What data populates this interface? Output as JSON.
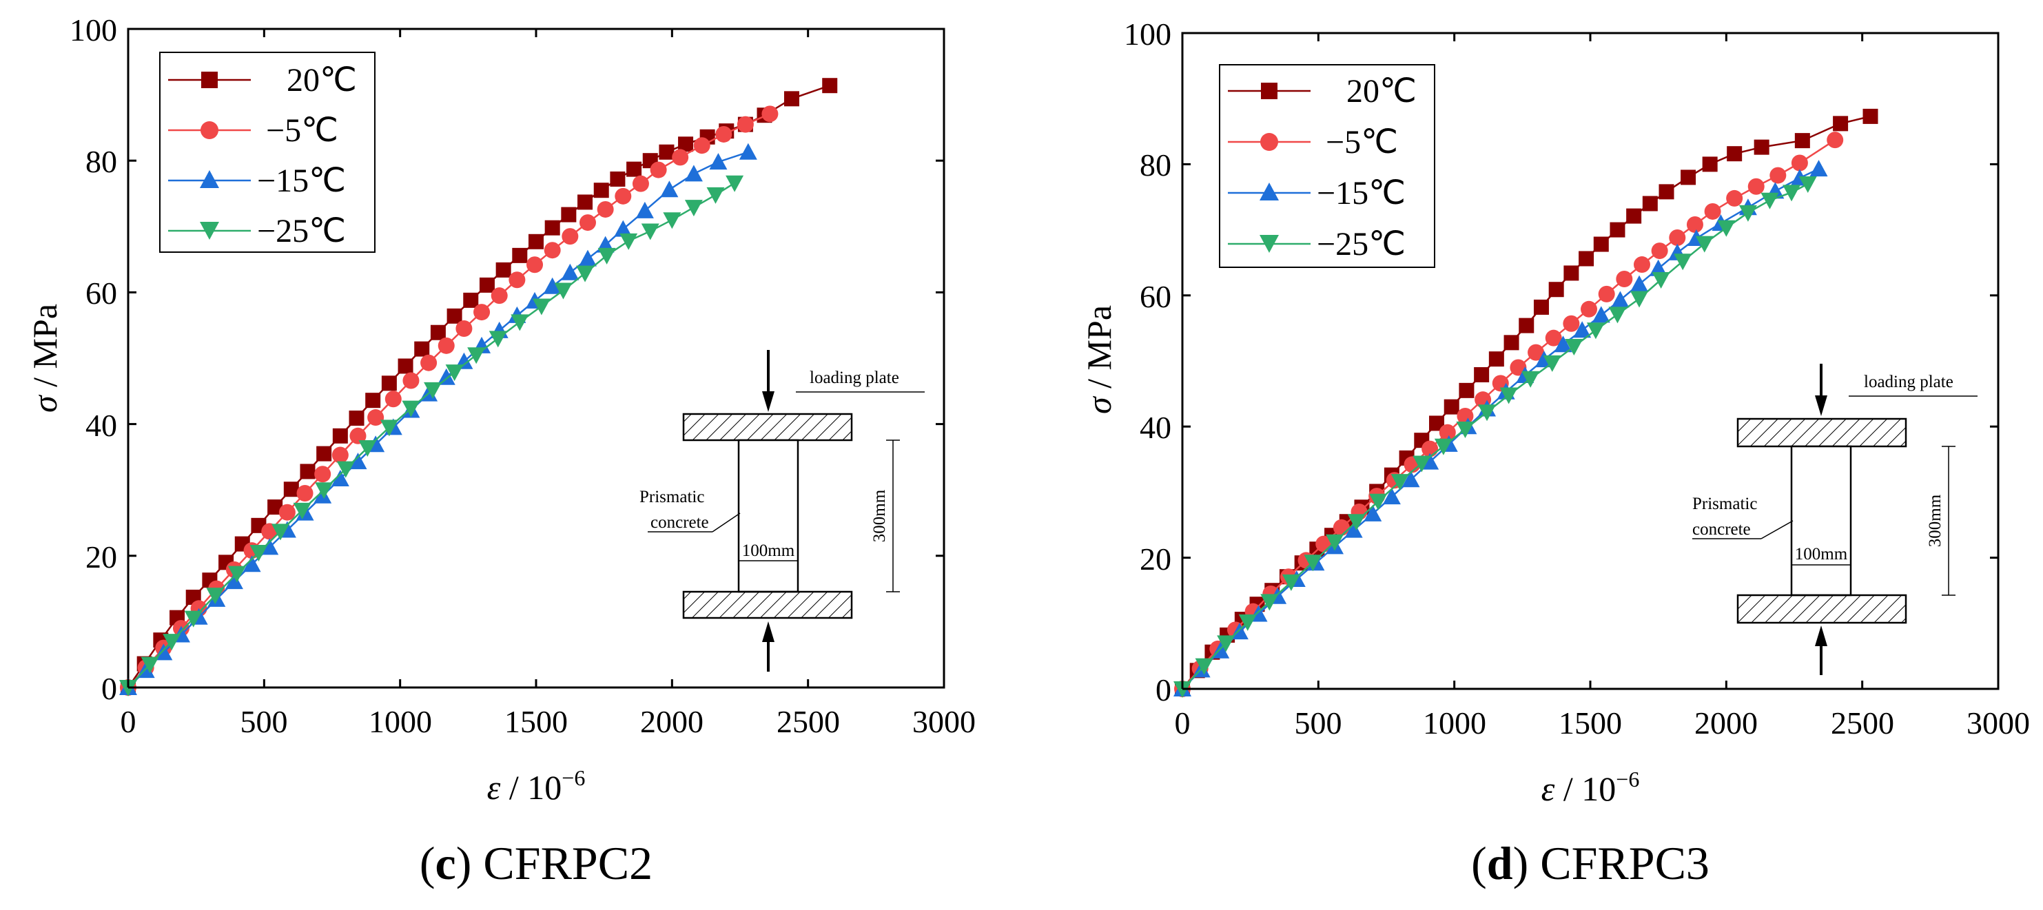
{
  "colors": {
    "s20": "#8B0000",
    "s_5": "#F04848",
    "s_15": "#1E6FD9",
    "s_25": "#2EAD6B"
  },
  "chart_data": [
    {
      "type": "line",
      "panel": "c",
      "caption_letter": "c",
      "caption_open": "(",
      "caption_close": ")",
      "caption_text": "CFRPC2",
      "xlabel_sym": "ε",
      "xlabel_rest": " / 10",
      "xlabel_exp": "−6",
      "ylabel_sym": "σ",
      "ylabel_rest": " / MPa",
      "xlim": [
        0,
        3000
      ],
      "ylim": [
        0,
        100
      ],
      "xticks": [
        "0",
        "500",
        "1000",
        "1500",
        "2000",
        "2500",
        "3000"
      ],
      "yticks": [
        "0",
        "20",
        "40",
        "60",
        "80",
        "100"
      ],
      "legend_position": "top-left",
      "inset": {
        "top_label": "loading plate",
        "left_label_1": "Prismatic",
        "left_label_2": "concrete",
        "width_label": "100mm",
        "height_label": "300mm"
      },
      "series": [
        {
          "name": "20℃",
          "marker": "square",
          "color": "#8B0000",
          "x": [
            0,
            60,
            120,
            180,
            240,
            300,
            360,
            420,
            480,
            540,
            600,
            660,
            720,
            780,
            840,
            900,
            960,
            1020,
            1080,
            1140,
            1200,
            1260,
            1320,
            1380,
            1440,
            1500,
            1560,
            1620,
            1680,
            1740,
            1800,
            1860,
            1920,
            1980,
            2050,
            2130,
            2200,
            2270,
            2340,
            2440,
            2580
          ],
          "y": [
            0,
            3.6,
            7.2,
            10.6,
            13.7,
            16.3,
            19.0,
            21.8,
            24.6,
            27.4,
            30.1,
            32.8,
            35.5,
            38.2,
            40.9,
            43.6,
            46.2,
            48.8,
            51.4,
            53.9,
            56.4,
            58.8,
            61.1,
            63.4,
            65.6,
            67.7,
            69.8,
            71.8,
            73.7,
            75.5,
            77.2,
            78.7,
            80.0,
            81.3,
            82.5,
            83.6,
            84.5,
            85.5,
            86.9,
            89.4,
            91.4
          ]
        },
        {
          "name": "−5℃",
          "marker": "circle",
          "color": "#F04848",
          "x": [
            0,
            65,
            130,
            195,
            260,
            325,
            390,
            455,
            520,
            585,
            650,
            715,
            780,
            845,
            910,
            975,
            1040,
            1105,
            1170,
            1235,
            1300,
            1365,
            1430,
            1495,
            1560,
            1625,
            1690,
            1755,
            1820,
            1885,
            1950,
            2030,
            2110,
            2190,
            2270,
            2360
          ],
          "y": [
            0,
            3.0,
            6.0,
            9.0,
            12.0,
            15.0,
            17.9,
            20.8,
            23.7,
            26.6,
            29.5,
            32.4,
            35.3,
            38.2,
            41.0,
            43.8,
            46.6,
            49.3,
            51.9,
            54.5,
            57.0,
            59.5,
            61.9,
            64.2,
            66.4,
            68.5,
            70.6,
            72.6,
            74.6,
            76.5,
            78.6,
            80.5,
            82.3,
            84.0,
            85.5,
            87.1
          ]
        },
        {
          "name": "−15℃",
          "marker": "triangle-up",
          "color": "#1E6FD9",
          "x": [
            0,
            65,
            130,
            195,
            260,
            325,
            390,
            455,
            520,
            585,
            650,
            715,
            780,
            845,
            910,
            975,
            1040,
            1105,
            1170,
            1235,
            1300,
            1365,
            1430,
            1495,
            1560,
            1625,
            1690,
            1755,
            1820,
            1900,
            1990,
            2080,
            2170,
            2280
          ],
          "y": [
            0,
            2.6,
            5.3,
            8.0,
            10.7,
            13.4,
            16.1,
            18.7,
            21.3,
            23.9,
            26.5,
            29.1,
            31.7,
            34.3,
            36.9,
            39.5,
            42.1,
            44.6,
            47.1,
            49.5,
            51.9,
            54.2,
            56.5,
            58.7,
            60.9,
            63.0,
            65.1,
            67.2,
            69.6,
            72.4,
            75.6,
            78.0,
            79.8,
            81.3
          ]
        },
        {
          "name": "−25℃",
          "marker": "triangle-down",
          "color": "#2EAD6B",
          "x": [
            0,
            80,
            160,
            240,
            320,
            400,
            480,
            560,
            640,
            720,
            800,
            880,
            960,
            1040,
            1120,
            1200,
            1280,
            1360,
            1440,
            1520,
            1600,
            1680,
            1760,
            1840,
            1920,
            2000,
            2080,
            2160,
            2230
          ],
          "y": [
            0,
            3.5,
            7.0,
            10.5,
            14.0,
            17.3,
            20.5,
            23.7,
            26.9,
            30.0,
            33.2,
            36.4,
            39.5,
            42.4,
            45.2,
            47.9,
            50.5,
            53.0,
            55.5,
            57.9,
            60.3,
            62.9,
            65.6,
            67.8,
            69.3,
            71.0,
            72.9,
            74.8,
            76.6
          ]
        }
      ]
    },
    {
      "type": "line",
      "panel": "d",
      "caption_letter": "d",
      "caption_open": "(",
      "caption_close": ")",
      "caption_text": "CFRPC3",
      "xlabel_sym": "ε",
      "xlabel_rest": " / 10",
      "xlabel_exp": "−6",
      "ylabel_sym": "σ",
      "ylabel_rest": " / MPa",
      "xlim": [
        0,
        3000
      ],
      "ylim": [
        0,
        100
      ],
      "xticks": [
        "0",
        "500",
        "1000",
        "1500",
        "2000",
        "2500",
        "3000"
      ],
      "yticks": [
        "0",
        "20",
        "40",
        "60",
        "80",
        "100"
      ],
      "legend_position": "top-left",
      "inset": {
        "top_label": "loading plate",
        "left_label_1": "Prismatic",
        "left_label_2": "concrete",
        "width_label": "100mm",
        "height_label": "300mm"
      },
      "series": [
        {
          "name": "20℃",
          "marker": "square",
          "color": "#8B0000",
          "x": [
            0,
            55,
            110,
            165,
            220,
            275,
            330,
            385,
            440,
            495,
            550,
            605,
            660,
            715,
            770,
            825,
            880,
            935,
            990,
            1045,
            1100,
            1155,
            1210,
            1265,
            1320,
            1375,
            1430,
            1485,
            1540,
            1600,
            1660,
            1720,
            1780,
            1860,
            1940,
            2030,
            2130,
            2280,
            2420,
            2530
          ],
          "y": [
            0,
            2.8,
            5.6,
            8.2,
            10.6,
            12.9,
            15.0,
            17.1,
            19.2,
            21.3,
            23.4,
            25.5,
            27.7,
            30.1,
            32.6,
            35.2,
            37.9,
            40.5,
            43.0,
            45.5,
            47.9,
            50.3,
            52.8,
            55.4,
            58.2,
            60.9,
            63.4,
            65.6,
            67.8,
            70.0,
            72.1,
            74.0,
            75.8,
            78.0,
            80.0,
            81.6,
            82.6,
            83.6,
            86.2,
            87.3
          ]
        },
        {
          "name": "−5℃",
          "marker": "circle",
          "color": "#F04848",
          "x": [
            0,
            65,
            130,
            195,
            260,
            325,
            390,
            455,
            520,
            585,
            650,
            715,
            780,
            845,
            910,
            975,
            1040,
            1105,
            1170,
            1235,
            1300,
            1365,
            1430,
            1495,
            1560,
            1625,
            1690,
            1755,
            1820,
            1885,
            1950,
            2030,
            2110,
            2190,
            2270,
            2400
          ],
          "y": [
            0,
            3.1,
            6.1,
            9.0,
            11.8,
            14.5,
            17.1,
            19.6,
            22.1,
            24.6,
            27.0,
            29.4,
            31.8,
            34.2,
            36.6,
            39.1,
            41.6,
            44.1,
            46.6,
            49.0,
            51.3,
            53.5,
            55.7,
            57.9,
            60.2,
            62.5,
            64.7,
            66.8,
            68.8,
            70.8,
            72.8,
            74.8,
            76.6,
            78.3,
            80.2,
            83.7
          ]
        },
        {
          "name": "−15℃",
          "marker": "triangle-up",
          "color": "#1E6FD9",
          "x": [
            0,
            70,
            140,
            210,
            280,
            350,
            420,
            490,
            560,
            630,
            700,
            770,
            840,
            910,
            980,
            1050,
            1120,
            1190,
            1260,
            1330,
            1400,
            1470,
            1540,
            1610,
            1680,
            1750,
            1820,
            1890,
            1980,
            2080,
            2180,
            2270,
            2340
          ],
          "y": [
            0,
            2.9,
            5.8,
            8.7,
            11.4,
            14.1,
            16.7,
            19.2,
            21.7,
            24.2,
            26.7,
            29.3,
            31.9,
            34.6,
            37.3,
            40.0,
            42.7,
            45.3,
            47.8,
            50.2,
            52.5,
            54.7,
            57.0,
            59.3,
            61.7,
            64.1,
            66.5,
            68.7,
            71.0,
            73.4,
            75.9,
            77.9,
            79.3
          ]
        },
        {
          "name": "−25℃",
          "marker": "triangle-down",
          "color": "#2EAD6B",
          "x": [
            0,
            80,
            160,
            240,
            320,
            400,
            480,
            560,
            640,
            720,
            800,
            880,
            960,
            1040,
            1120,
            1200,
            1280,
            1360,
            1440,
            1520,
            1600,
            1680,
            1760,
            1840,
            1920,
            2000,
            2080,
            2160,
            2240,
            2300
          ],
          "y": [
            0,
            3.5,
            7.0,
            10.2,
            13.3,
            16.3,
            19.3,
            22.4,
            25.5,
            28.6,
            31.6,
            34.4,
            37.0,
            39.6,
            42.2,
            44.8,
            47.3,
            49.7,
            52.2,
            54.7,
            57.1,
            59.5,
            62.4,
            65.2,
            67.9,
            70.3,
            72.6,
            74.5,
            75.7,
            77.0
          ]
        }
      ]
    }
  ]
}
